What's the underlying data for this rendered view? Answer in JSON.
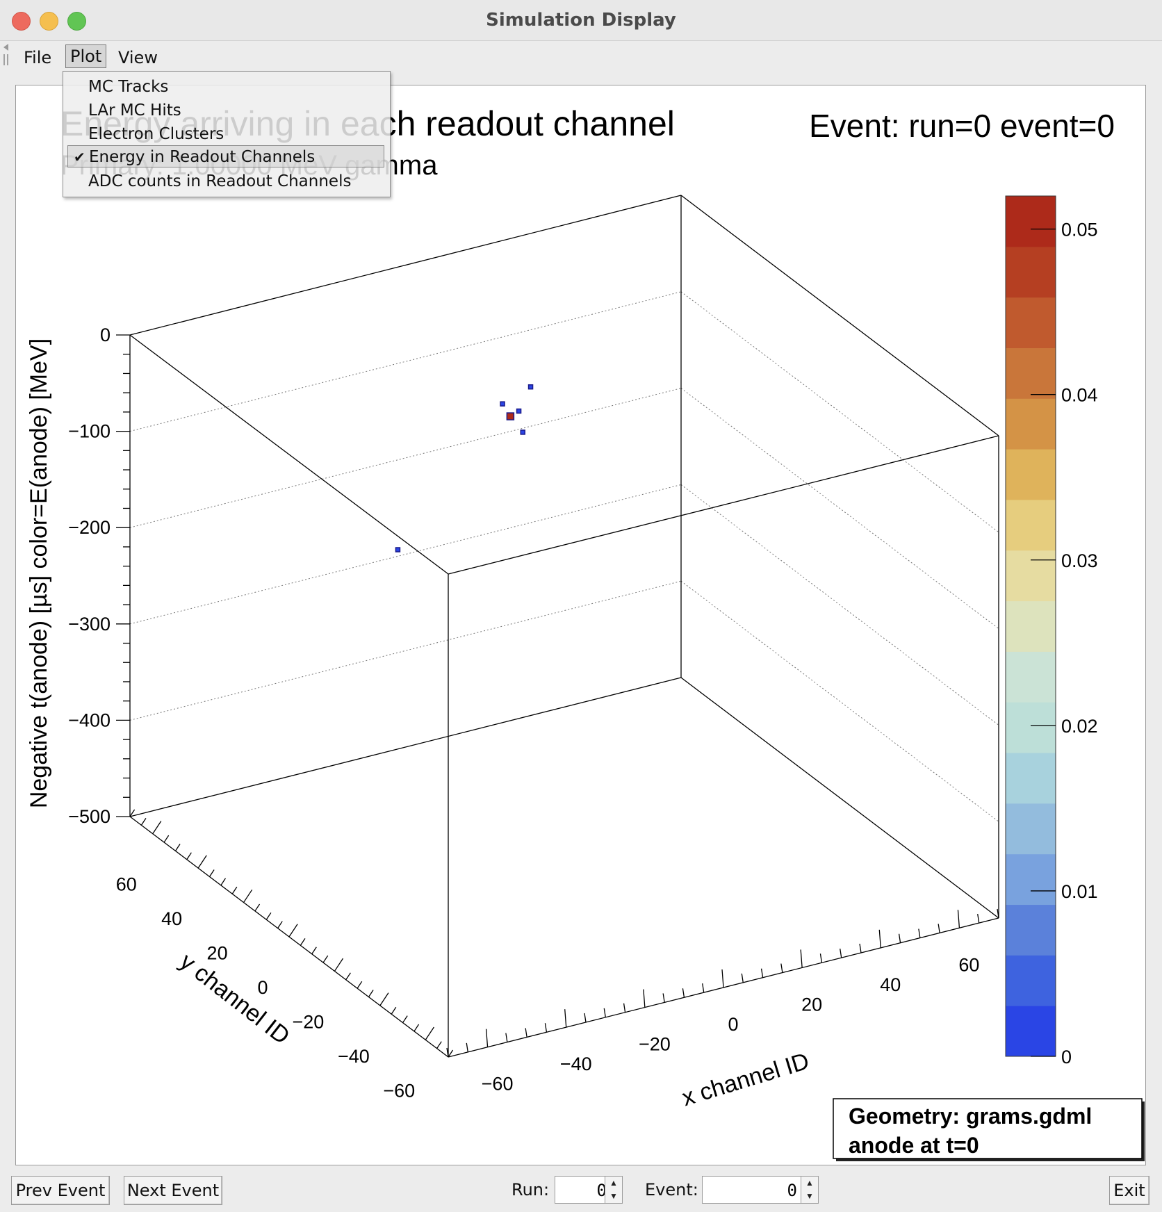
{
  "window": {
    "title": "Simulation Display",
    "controls": {
      "close_color": "#ed6a5e",
      "minimize_color": "#f5bf4f",
      "zoom_color": "#61c554"
    }
  },
  "menubar": {
    "file": "File",
    "plot": "Plot",
    "view": "View"
  },
  "plot_menu": {
    "items": [
      {
        "label": "MC Tracks",
        "checked": false
      },
      {
        "label": "LAr MC Hits",
        "checked": false
      },
      {
        "label": "Electron Clusters",
        "checked": false
      },
      {
        "label": "Energy in Readout Channels",
        "checked": true
      },
      {
        "label": "ADC counts in Readout Channels",
        "checked": false
      }
    ],
    "check_glyph": "✔"
  },
  "chart_data": {
    "type": "scatter",
    "title": "Energy arriving in each readout channel",
    "subtitle": "Primary: 1.00000 MeV gamma",
    "event_label": "Event: run=0 event=0",
    "xlabel": "x channel ID",
    "ylabel": "y channel ID",
    "zlabel": "Negative t(anode) [µs]     color=E(anode) [MeV]",
    "xlim": [
      -70,
      70
    ],
    "ylim": [
      -70,
      70
    ],
    "zlim": [
      -500,
      0
    ],
    "x_ticks": [
      -60,
      -40,
      -20,
      0,
      20,
      40,
      60
    ],
    "y_ticks": [
      -60,
      -40,
      -20,
      0,
      20,
      40,
      60
    ],
    "z_ticks": [
      0,
      -100,
      -200,
      -300,
      -400,
      -500
    ],
    "colorbar": {
      "min": 0,
      "max": 0.052,
      "ticks": [
        0,
        0.01,
        0.02,
        0.03,
        0.04,
        0.05
      ],
      "colors": [
        "#2a45e5",
        "#3e63df",
        "#5b81da",
        "#79a2de",
        "#93bcdd",
        "#a8d2dd",
        "#bddfd8",
        "#cbe3d6",
        "#dde3bd",
        "#e6dca1",
        "#e6cd7e",
        "#dfb35b",
        "#d49346",
        "#c9763a",
        "#c05a2e",
        "#b53f22",
        "#ad2a1a"
      ]
    },
    "points": [
      {
        "x": 3,
        "y": 20,
        "z": -40,
        "e": 0.002
      },
      {
        "x": -3,
        "y": 22,
        "z": -55,
        "e": 0.003
      },
      {
        "x": -1,
        "y": 22,
        "z": -70,
        "e": 0.05
      },
      {
        "x": 0,
        "y": 20,
        "z": -62,
        "e": 0.002
      },
      {
        "x": 1,
        "y": 20,
        "z": -85,
        "e": 0.001
      },
      {
        "x": -25,
        "y": 30,
        "z": -198,
        "e": 0.001
      }
    ],
    "grid": true,
    "legend": "none"
  },
  "geometry_box": {
    "line1": "Geometry: grams.gdml",
    "line2": "anode at t=0"
  },
  "bottom": {
    "prev": "Prev Event",
    "next": "Next Event",
    "run_label": "Run:",
    "run_value": "0",
    "event_label": "Event:",
    "event_value": "0",
    "exit": "Exit"
  }
}
